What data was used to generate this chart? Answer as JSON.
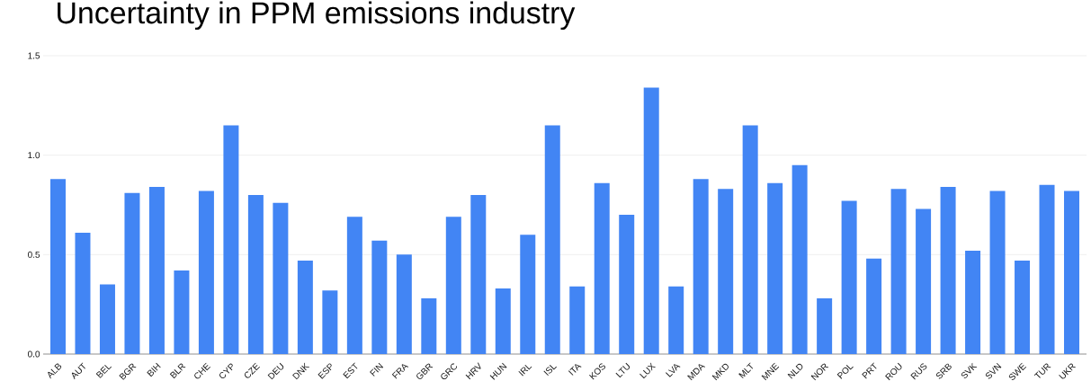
{
  "chart_data": {
    "type": "bar",
    "title": "Uncertainty in PPM emissions industry",
    "categories": [
      "ALB",
      "AUT",
      "BEL",
      "BGR",
      "BIH",
      "BLR",
      "CHE",
      "CYP",
      "CZE",
      "DEU",
      "DNK",
      "ESP",
      "EST",
      "FIN",
      "FRA",
      "GBR",
      "GRC",
      "HRV",
      "HUN",
      "IRL",
      "ISL",
      "ITA",
      "KOS",
      "LTU",
      "LUX",
      "LVA",
      "MDA",
      "MKD",
      "MLT",
      "MNE",
      "NLD",
      "NOR",
      "POL",
      "PRT",
      "ROU",
      "RUS",
      "SRB",
      "SVK",
      "SVN",
      "SWE",
      "TUR",
      "UKR"
    ],
    "values": [
      0.88,
      0.61,
      0.35,
      0.81,
      0.84,
      0.42,
      0.82,
      1.15,
      0.8,
      0.76,
      0.47,
      0.32,
      0.69,
      0.57,
      0.5,
      0.28,
      0.69,
      0.8,
      0.33,
      0.6,
      1.15,
      0.34,
      0.86,
      0.7,
      1.34,
      0.34,
      0.88,
      0.83,
      1.15,
      0.86,
      0.95,
      0.28,
      0.77,
      0.48,
      0.83,
      0.73,
      0.84,
      0.52,
      0.82,
      0.47,
      0.85,
      0.82
    ],
    "color": "#4285f4",
    "ylim": [
      0,
      1.5
    ],
    "yticks": [
      {
        "value": 0,
        "label": "0.0"
      },
      {
        "value": 0.5,
        "label": "0.5"
      },
      {
        "value": 1,
        "label": "1.0"
      },
      {
        "value": 1.5,
        "label": "1.5"
      }
    ],
    "grid": "y"
  }
}
